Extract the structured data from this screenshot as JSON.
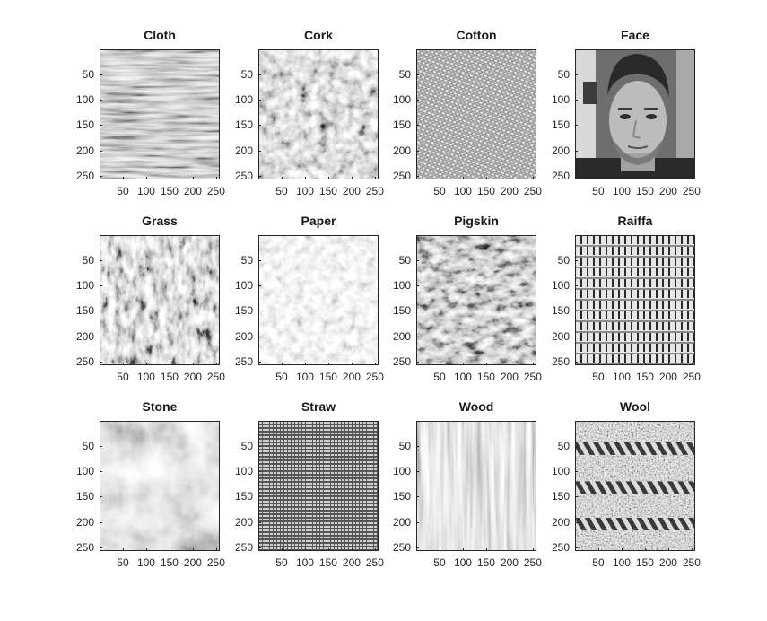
{
  "figure": {
    "panels": [
      {
        "title": "Cloth",
        "texture": "cloth-texture"
      },
      {
        "title": "Cork",
        "texture": "cork-texture"
      },
      {
        "title": "Cotton",
        "texture": "cotton-texture"
      },
      {
        "title": "Face",
        "texture": "face-photo"
      },
      {
        "title": "Grass",
        "texture": "grass-texture"
      },
      {
        "title": "Paper",
        "texture": "paper-texture"
      },
      {
        "title": "Pigskin",
        "texture": "pigskin-texture"
      },
      {
        "title": "Raiffa",
        "texture": "raffia-texture"
      },
      {
        "title": "Stone",
        "texture": "stone-texture"
      },
      {
        "title": "Straw",
        "texture": "straw-texture"
      },
      {
        "title": "Wood",
        "texture": "wood-texture"
      },
      {
        "title": "Wool",
        "texture": "wool-texture"
      }
    ],
    "y_ticks": [
      "50",
      "100",
      "150",
      "200",
      "250"
    ],
    "x_ticks": [
      "50",
      "100",
      "150",
      "200",
      "250"
    ],
    "axis_color": "#262626",
    "axis_range": [
      0,
      256
    ]
  }
}
